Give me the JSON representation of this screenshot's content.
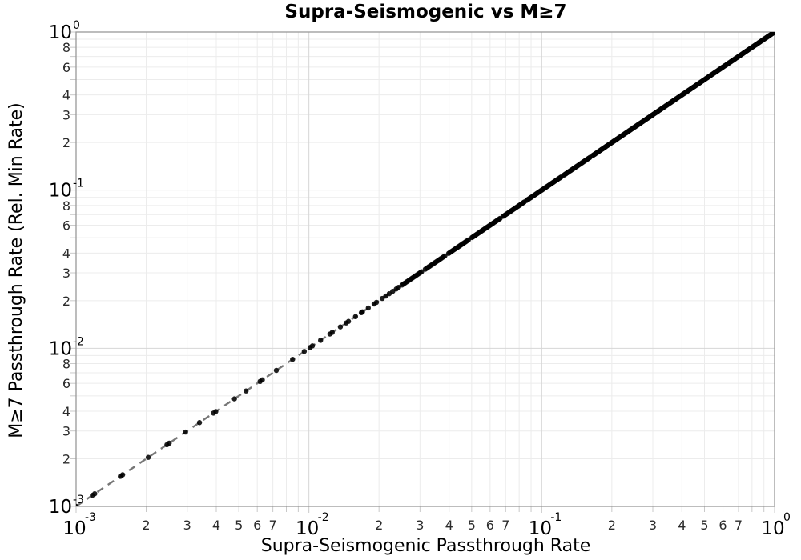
{
  "chart_data": {
    "type": "scatter",
    "title": "Supra-Seismogenic vs M≥7",
    "xlabel": "Supra-Seismogenic Passthrough Rate",
    "ylabel": "M≥7 Passthrough Rate (Rel. Min Rate)",
    "x_scale": "log",
    "y_scale": "log",
    "xlim": [
      0.001,
      1
    ],
    "ylim": [
      0.001,
      1
    ],
    "grid": "major and minor gridlines, on",
    "legend": "none",
    "relation": "points lie on y = x from 0.001 to 1, dense toward 1",
    "major_tick_base": "10",
    "x_major_tick_exponents": [
      -3,
      -2,
      -1,
      0
    ],
    "y_major_tick_exponents": [
      0,
      -1,
      -2,
      -3
    ],
    "x_minor_tick_labels": [
      2,
      3,
      4,
      5,
      6,
      7
    ],
    "y_minor_tick_labels": [
      2,
      3,
      4,
      6,
      8
    ],
    "reference_line": {
      "style": "dashed",
      "from": [
        0.001,
        0.001
      ],
      "to": [
        1,
        1
      ],
      "color": "#777777"
    },
    "marker": {
      "shape": "circle",
      "color": "#000000",
      "opacity": 0.88,
      "radius_px": 3.2
    },
    "points_log10x": [
      -3.0,
      -2.93,
      -2.92,
      -2.81,
      -2.8,
      -2.69,
      -2.61,
      -2.6,
      -2.53,
      -2.47,
      -2.41,
      -2.4,
      -2.32,
      -2.27,
      -2.21,
      -2.2,
      -2.14,
      -2.07,
      -2.02,
      -1.995,
      -1.985,
      -1.95,
      -1.91,
      -1.9,
      -1.865,
      -1.84,
      -1.83,
      -1.8,
      -1.775,
      -1.77,
      -1.745,
      -1.72,
      -1.71,
      -1.685,
      -1.67,
      -1.655,
      -1.64,
      -1.625,
      -1.615
    ],
    "dense_segments_log10x": [
      {
        "from": -1.6,
        "to": -1.515,
        "step": 0.006
      },
      {
        "from": -1.5,
        "to": -1.415,
        "step": 0.006
      },
      {
        "from": -1.4,
        "to": -1.315,
        "step": 0.005
      },
      {
        "from": -1.3,
        "to": -1.175,
        "step": 0.0045
      },
      {
        "from": -1.165,
        "to": -1.075,
        "step": 0.0045
      },
      {
        "from": -1.065,
        "to": -0.915,
        "step": 0.004
      },
      {
        "from": -0.905,
        "to": -0.79,
        "step": 0.004
      },
      {
        "from": -0.78,
        "to": 0.0,
        "step": 0.0035
      }
    ],
    "colors": {
      "marker": "#000000",
      "reference_line": "#777777",
      "grid_major": "#d6d6d6",
      "grid_minor": "#ececec",
      "plot_border": "#999999",
      "tick": "#c9c9c9",
      "major_label": "#000000",
      "minor_label": "#2b2b2b"
    }
  }
}
